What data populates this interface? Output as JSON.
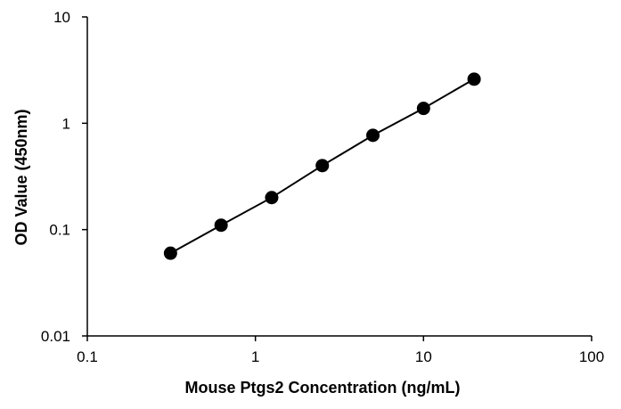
{
  "chart_data": {
    "type": "scatter",
    "title": "",
    "xlabel": "Mouse Ptgs2 Concentration (ng/mL)",
    "ylabel": "OD Value (450nm)",
    "xscale": "log",
    "yscale": "log",
    "xlim": [
      0.1,
      100
    ],
    "ylim": [
      0.01,
      10
    ],
    "xticks": [
      0.1,
      1,
      10,
      100
    ],
    "xtick_labels": [
      "0.1",
      "1",
      "10",
      "100"
    ],
    "yticks": [
      0.01,
      0.1,
      1,
      10
    ],
    "ytick_labels": [
      "0.01",
      "0.1",
      "1",
      "10"
    ],
    "grid": false,
    "legend": "none",
    "series": [
      {
        "x": [
          0.3125,
          0.625,
          1.25,
          2.5,
          5,
          10,
          20
        ],
        "y": [
          0.06,
          0.11,
          0.2,
          0.4,
          0.77,
          1.38,
          2.6
        ],
        "color": "#000000",
        "fit_line": true
      }
    ]
  }
}
